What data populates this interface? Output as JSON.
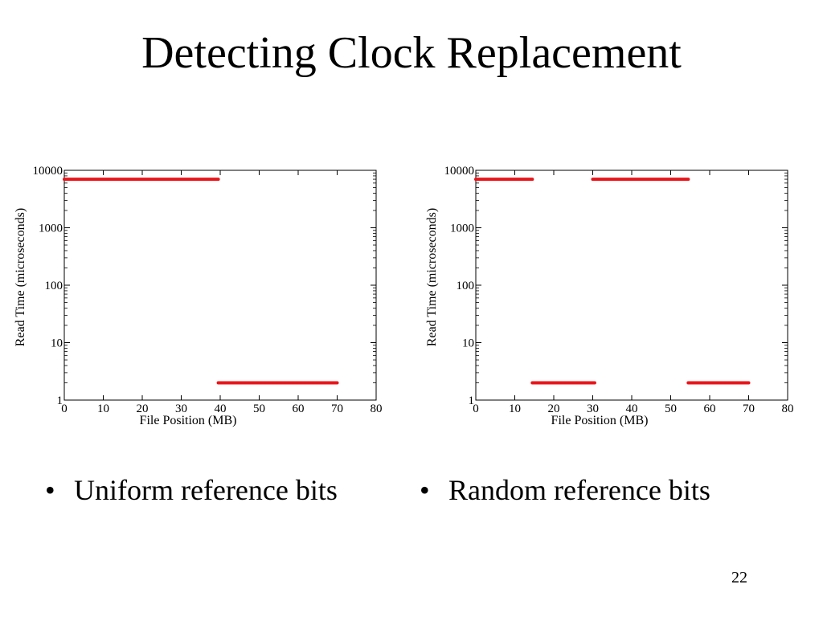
{
  "slide": {
    "title": "Detecting Clock Replacement",
    "bullets": [
      "Uniform reference bits",
      "Random reference bits"
    ],
    "bullet_symbol": "•",
    "page_number": "22"
  },
  "chart_data": [
    {
      "type": "line",
      "xlabel": "File Position (MB)",
      "ylabel": "Read Time (microseconds)",
      "xlim": [
        0,
        80
      ],
      "ylim": [
        1,
        10000
      ],
      "y_scale": "log",
      "x_ticks": [
        "0",
        "10",
        "20",
        "30",
        "40",
        "50",
        "60",
        "70",
        "80"
      ],
      "y_ticks": [
        "1",
        "10",
        "100",
        "1000",
        "10000"
      ],
      "grid": false,
      "line_color": "#e8141a",
      "series": [
        {
          "x": [
            0,
            39.5
          ],
          "y": [
            7000,
            7000
          ]
        },
        {
          "x": [
            39.5,
            70
          ],
          "y": [
            2,
            2
          ]
        }
      ]
    },
    {
      "type": "line",
      "xlabel": "File Position (MB)",
      "ylabel": "Read Time (microseconds)",
      "xlim": [
        0,
        80
      ],
      "ylim": [
        1,
        10000
      ],
      "y_scale": "log",
      "x_ticks": [
        "0",
        "10",
        "20",
        "30",
        "40",
        "50",
        "60",
        "70",
        "80"
      ],
      "y_ticks": [
        "1",
        "10",
        "100",
        "1000",
        "10000"
      ],
      "grid": false,
      "line_color": "#e8141a",
      "series": [
        {
          "x": [
            0,
            14.5
          ],
          "y": [
            7000,
            7000
          ]
        },
        {
          "x": [
            14.5,
            30.5
          ],
          "y": [
            2,
            2
          ]
        },
        {
          "x": [
            30,
            54.5
          ],
          "y": [
            7000,
            7000
          ]
        },
        {
          "x": [
            54.5,
            70
          ],
          "y": [
            2,
            2
          ]
        }
      ]
    }
  ]
}
